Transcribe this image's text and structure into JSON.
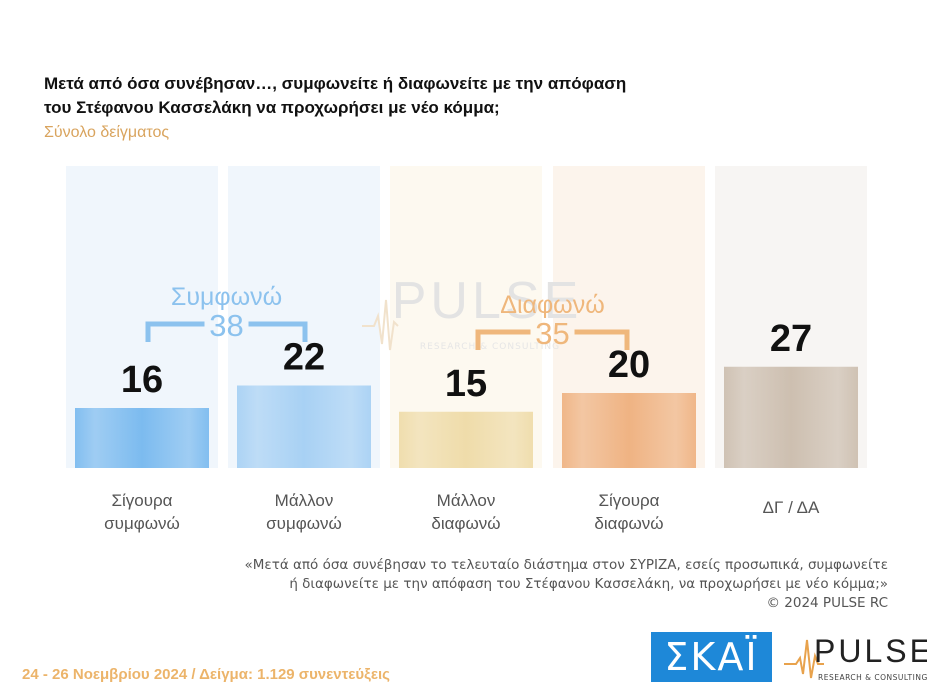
{
  "title_line1": "Μετά από όσα συνέβησαν…, συμφωνείτε ή διαφωνείτε με την απόφαση",
  "title_line2": "του Στέφανου Κασσελάκη να προχωρήσει με νέο κόμμα;",
  "subtitle": "Σύνολο δείγματος",
  "watermark": {
    "main": "PULSE",
    "sub": "RESEARCH & CONSULTING"
  },
  "chart_data": {
    "type": "bar",
    "categories": [
      [
        "Σίγουρα",
        "συμφωνώ"
      ],
      [
        "Μάλλον",
        "συμφωνώ"
      ],
      [
        "Μάλλον",
        "διαφωνώ"
      ],
      [
        "Σίγουρα",
        "διαφωνώ"
      ],
      [
        "ΔΓ / ΔΑ"
      ]
    ],
    "values": [
      16,
      22,
      15,
      20,
      27
    ],
    "colors": [
      "#7cbbef",
      "#a8d1f4",
      "#efdcaa",
      "#efb383",
      "#cdbfb0"
    ],
    "panel_colors": [
      "#f0f6fc",
      "#f0f6fc",
      "#fdf9f0",
      "#fcf4ec",
      "#f7f5f3"
    ],
    "groups": [
      {
        "label": "Συμφωνώ",
        "total": "38",
        "color": "#8cc2ee",
        "bars": [
          0,
          1
        ]
      },
      {
        "label": "Διαφωνώ",
        "total": "35",
        "color": "#efb77c",
        "bars": [
          2,
          3
        ]
      }
    ],
    "ylim": [
      0,
      40
    ]
  },
  "quote_line1": "«Μετά από όσα συνέβησαν το τελευταίο διάστημα στον ΣΥΡΙΖΑ, εσείς προσωπικά, συμφωνείτε",
  "quote_line2": "ή διαφωνείτε με την απόφαση του Στέφανου Κασσελάκη, να προχωρήσει με νέο κόμμα;»",
  "copyright": "©  2024  PULSE RC",
  "footer": "24 - 26 Νοεμβρίου 2024  /  Δείγμα:  1.129 συνεντεύξεις",
  "logos": {
    "skai": "ΣΚΑΪ",
    "pulse": "PULSE",
    "pulse_sub": "RESEARCH & CONSULTING"
  }
}
